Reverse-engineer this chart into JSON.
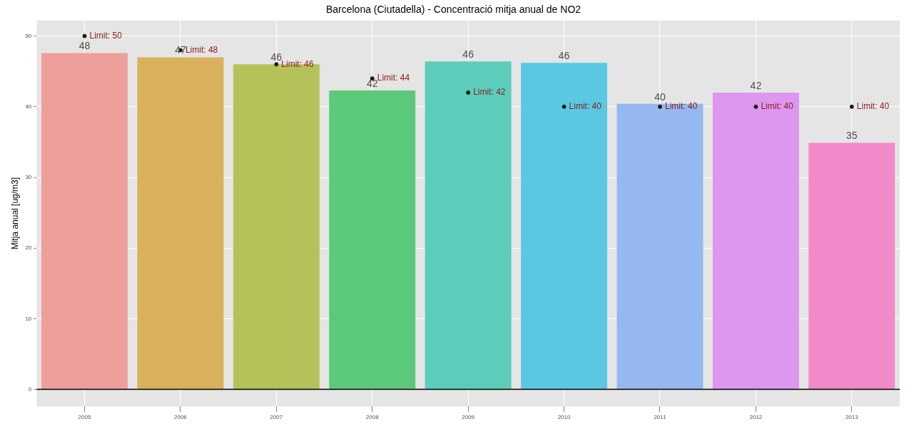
{
  "chart_data": {
    "type": "bar",
    "title": "Barcelona (Ciutadella) - Concentració mitja anual de NO2",
    "ylabel": "Mitja anual [ug/m3]",
    "categories": [
      "2005",
      "2006",
      "2007",
      "2008",
      "2009",
      "2010",
      "2011",
      "2012",
      "2013"
    ],
    "series": [
      {
        "colors": [
          "#ef9f9b",
          "#d9b05c",
          "#b5c25a",
          "#5cc97a",
          "#5ccdbb",
          "#5bc8e2",
          "#96b8f0",
          "#dd97ef",
          "#f28ac9"
        ],
        "values": [
          47.6,
          47.0,
          46.0,
          42.3,
          46.4,
          46.2,
          40.4,
          42.0,
          34.9
        ],
        "value_labels": [
          "48",
          "47",
          "46",
          "42",
          "46",
          "46",
          "40",
          "42",
          "35"
        ]
      },
      {
        "type": "scatter",
        "color": "#1a1a1a",
        "values": [
          50,
          48,
          46,
          44,
          42,
          40,
          40,
          40,
          40
        ],
        "value_labels": [
          "Limit: 50",
          "Limit: 48",
          "Limit: 46",
          "Limit: 44",
          "Limit: 42",
          "Limit: 40",
          "Limit: 40",
          "Limit: 40",
          "Limit: 40"
        ]
      }
    ],
    "ylim": [
      -2.4,
      52.2
    ],
    "yticks": [
      0,
      10,
      20,
      30,
      40,
      50
    ],
    "grid": true,
    "marker": "circle",
    "ref_lines": [
      {
        "axis": "y",
        "value": 0,
        "color": "#000000"
      }
    ]
  }
}
